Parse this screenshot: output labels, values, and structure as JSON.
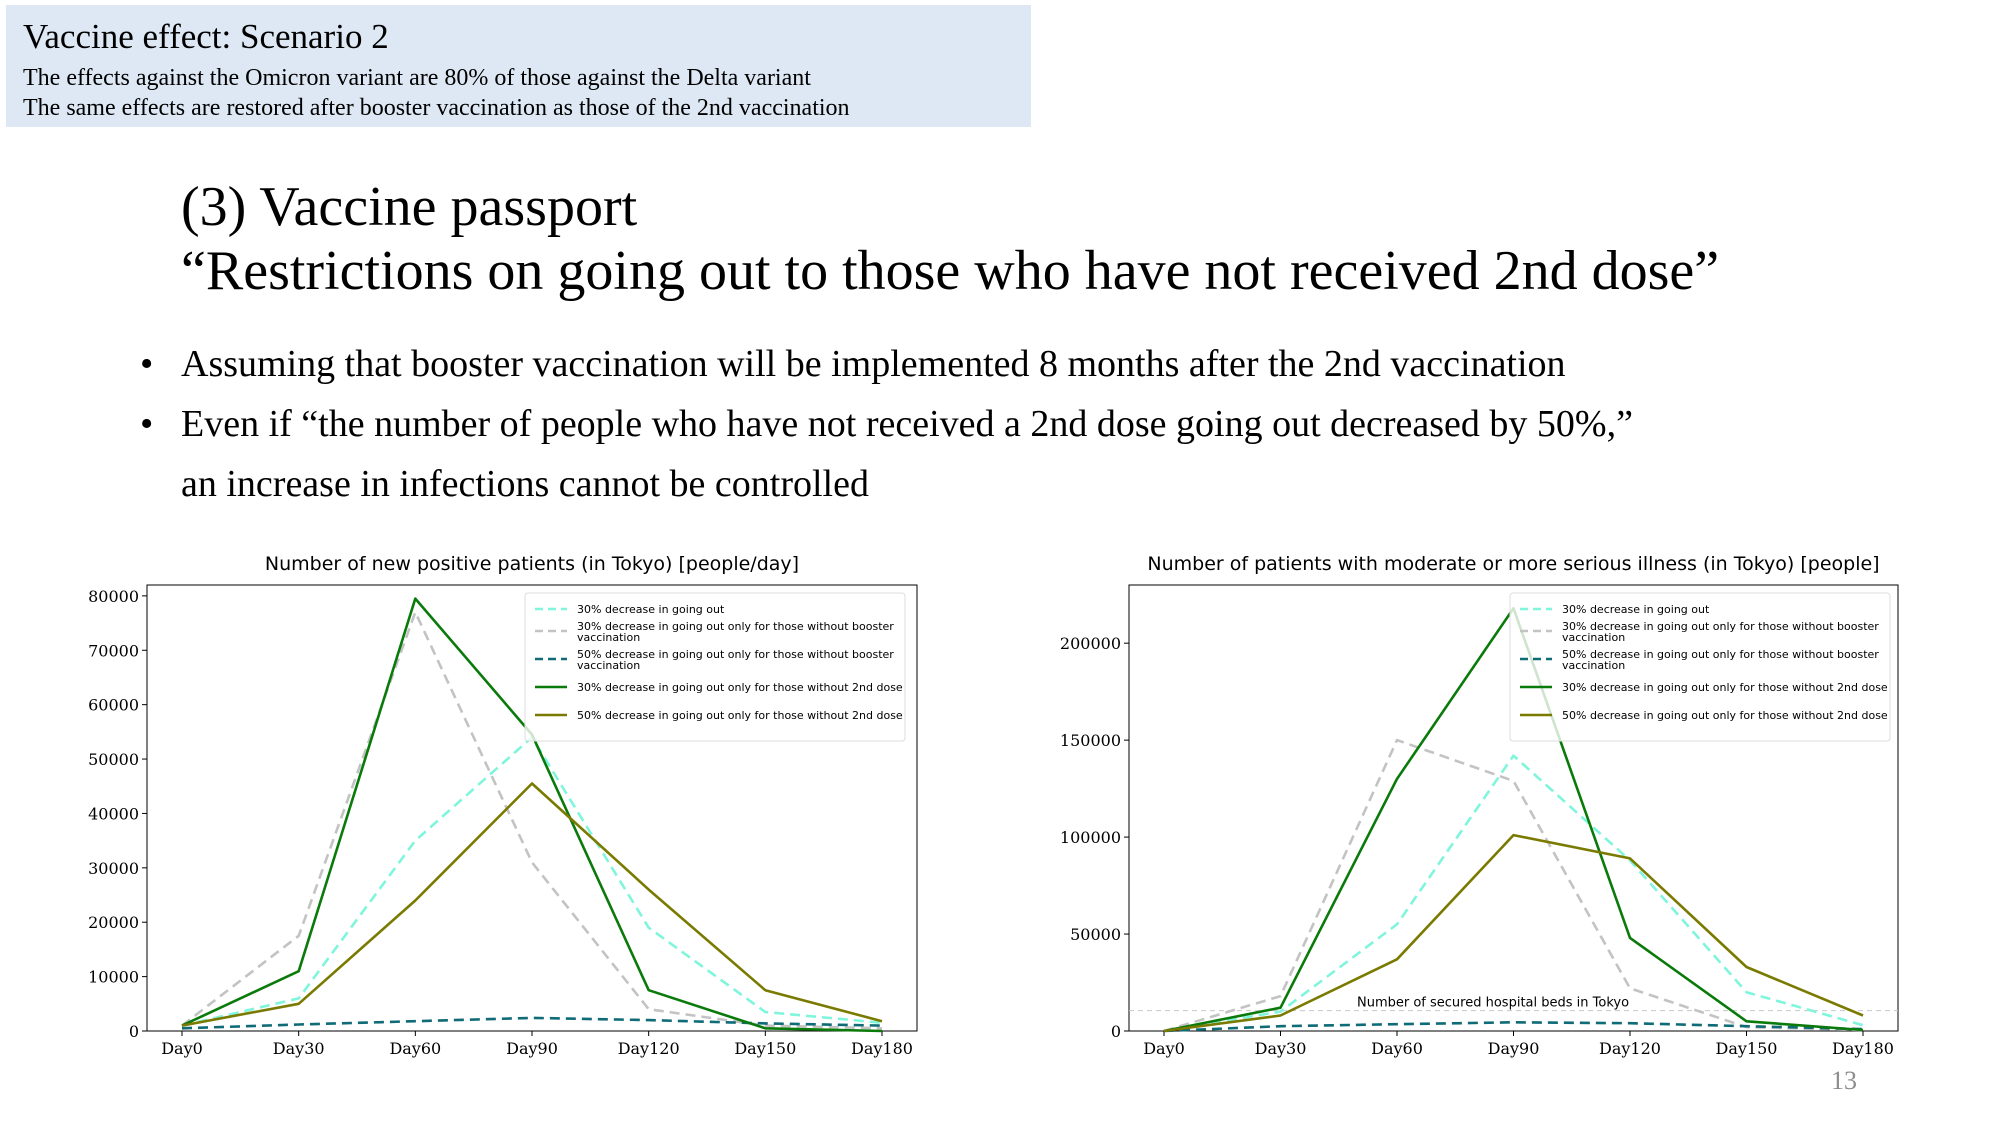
{
  "info_box": {
    "title": "Vaccine effect: Scenario 2",
    "line1": "The effects against the Omicron variant are 80% of those against the Delta variant",
    "line2": "The same effects are restored after booster vaccination as those of the 2nd vaccination"
  },
  "slide": {
    "title_line1": "(3) Vaccine passport",
    "title_line2": "“Restrictions on going out to those who have not received 2nd dose”",
    "bullet_char": "•",
    "bullet1": "Assuming that booster vaccination will be implemented 8 months after the 2nd vaccination",
    "bullet2_line1": "Even if “the number of people who have not received a 2nd dose going out decreased by 50%,”",
    "bullet2_line2": "an increase in infections cannot be controlled",
    "page_number": "13"
  },
  "chart_data": [
    {
      "type": "line",
      "title": "Number of new positive patients (in Tokyo) [people/day]",
      "categories": [
        "Day0",
        "Day30",
        "Day60",
        "Day90",
        "Day120",
        "Day150",
        "Day180"
      ],
      "ylim": [
        0,
        82000
      ],
      "yticks": [
        0,
        10000,
        20000,
        30000,
        40000,
        50000,
        60000,
        70000,
        80000
      ],
      "legend_position": "top-right",
      "grid": false,
      "series": [
        {
          "name": "30% decrease in going out",
          "color": "#7ff5dc",
          "dash": true,
          "values": [
            1000,
            6000,
            35000,
            54000,
            19000,
            3500,
            1500
          ]
        },
        {
          "name": "30% decrease in going out only for those without booster vaccination",
          "color": "#c3c3c3",
          "dash": true,
          "values": [
            1000,
            17500,
            77000,
            31000,
            4000,
            1000,
            500
          ]
        },
        {
          "name": "50% decrease in going out only for those without booster vaccination",
          "color": "#0f6b76",
          "dash": true,
          "values": [
            500,
            1200,
            1800,
            2400,
            2000,
            1400,
            1000
          ]
        },
        {
          "name": "30% decrease in going out only for those without 2nd dose",
          "color": "#0a7a0a",
          "dash": false,
          "values": [
            1000,
            11000,
            79500,
            54500,
            7500,
            500,
            0
          ]
        },
        {
          "name": "50% decrease in going out only for those without 2nd dose",
          "color": "#7a7a00",
          "dash": false,
          "values": [
            1000,
            5000,
            24000,
            45500,
            26000,
            7500,
            1800
          ]
        }
      ]
    },
    {
      "type": "line",
      "title": "Number of patients with moderate or more serious illness (in Tokyo) [people]",
      "categories": [
        "Day0",
        "Day30",
        "Day60",
        "Day90",
        "Day120",
        "Day150",
        "Day180"
      ],
      "ylim": [
        0,
        230000
      ],
      "yticks": [
        0,
        50000,
        100000,
        150000,
        200000
      ],
      "legend_position": "top-right",
      "grid": false,
      "reference_line": {
        "label": "Number of secured hospital beds in Tokyo",
        "value": 10500
      },
      "series": [
        {
          "name": "30% decrease in going out",
          "color": "#7ff5dc",
          "dash": true,
          "values": [
            0,
            10000,
            55000,
            142000,
            88000,
            20000,
            3000
          ]
        },
        {
          "name": "30% decrease in going out only for those without booster vaccination",
          "color": "#c3c3c3",
          "dash": true,
          "values": [
            0,
            18000,
            150000,
            129000,
            22000,
            2000,
            500
          ]
        },
        {
          "name": "50% decrease in going out only for those without booster vaccination",
          "color": "#0f6b76",
          "dash": true,
          "values": [
            0,
            2500,
            3500,
            4500,
            4000,
            2500,
            1000
          ]
        },
        {
          "name": "30% decrease in going out only for those without 2nd dose",
          "color": "#0a7a0a",
          "dash": false,
          "values": [
            0,
            12000,
            130000,
            218000,
            48000,
            5000,
            500
          ]
        },
        {
          "name": "50% decrease in going out only for those without 2nd dose",
          "color": "#7a7a00",
          "dash": false,
          "values": [
            0,
            8000,
            37000,
            101000,
            89000,
            33000,
            8000
          ]
        }
      ]
    }
  ]
}
